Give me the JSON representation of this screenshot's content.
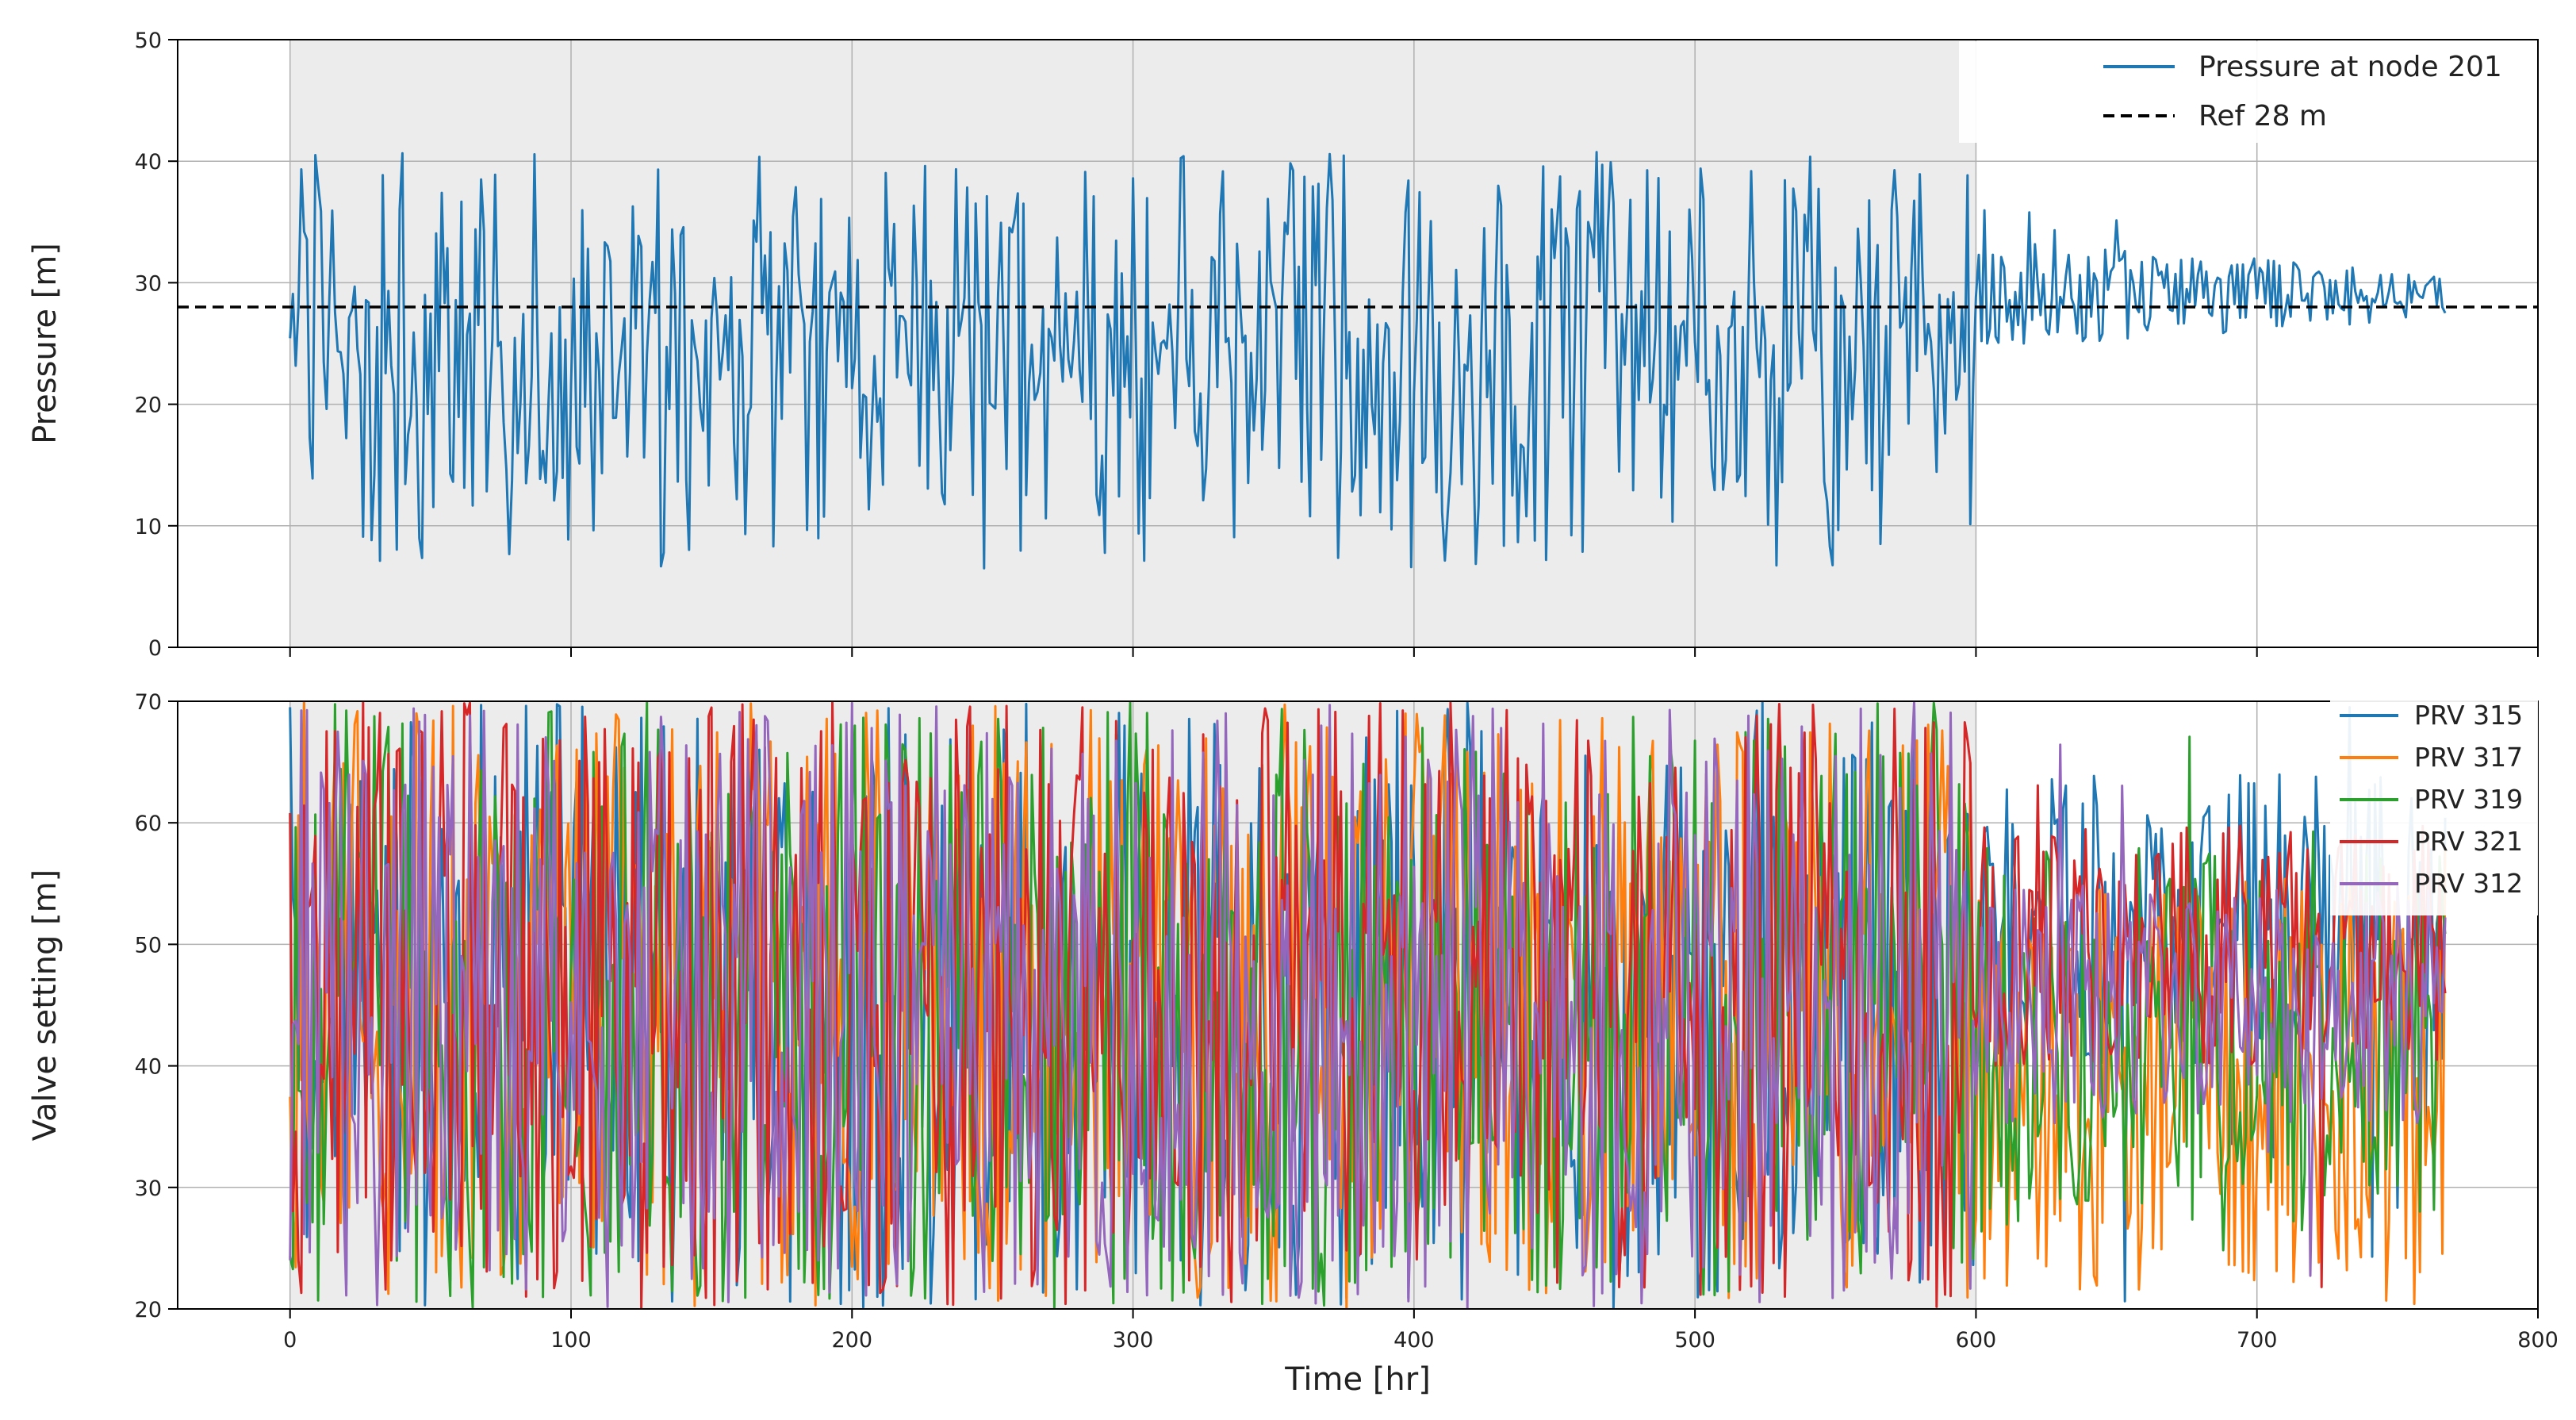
{
  "chart_data": [
    {
      "type": "line",
      "xlabel": "",
      "ylabel": "Pressure [m]",
      "xlim": [
        -40,
        800
      ],
      "ylim": [
        0,
        50
      ],
      "xticks": [
        0,
        100,
        200,
        300,
        400,
        500,
        600,
        700,
        800
      ],
      "yticks": [
        0,
        10,
        20,
        30,
        40,
        50
      ],
      "grid": true,
      "shaded_region": {
        "x_start": 0,
        "x_end": 600,
        "color": "#ececec"
      },
      "legend_position": "top-right",
      "series": [
        {
          "name": "Pressure at node 201",
          "color": "#1f77b4",
          "style": "solid",
          "time_range": [
            0,
            767
          ],
          "sampling_hr": 1,
          "segments": [
            {
              "x_range": [
                0,
                600
              ],
              "mean": 24.5,
              "min": 6.5,
              "max": 40.8
            },
            {
              "x_range": [
                600,
                767
              ],
              "mean": 29.0,
              "min": 25.0,
              "max": 36.2
            }
          ]
        },
        {
          "name": "Ref 28 m",
          "color": "#000000",
          "style": "dashed",
          "constant": 28
        }
      ]
    },
    {
      "type": "line",
      "xlabel": "Time [hr]",
      "ylabel": "Valve setting [m]",
      "xlim": [
        -40,
        800
      ],
      "ylim": [
        20,
        70
      ],
      "xticks": [
        0,
        100,
        200,
        300,
        400,
        500,
        600,
        700,
        800
      ],
      "yticks": [
        20,
        30,
        40,
        50,
        60,
        70
      ],
      "grid": true,
      "shaded_region": {
        "x_start": 0,
        "x_end": 600,
        "color": "#ececec"
      },
      "legend_position": "top-right",
      "series": [
        {
          "name": "PRV 315",
          "color": "#1f77b4",
          "time_range": [
            0,
            767
          ],
          "value_range": [
            20,
            70
          ]
        },
        {
          "name": "PRV 317",
          "color": "#ff7f0e",
          "time_range": [
            0,
            767
          ],
          "value_range": [
            20,
            70
          ]
        },
        {
          "name": "PRV 319",
          "color": "#2ca02c",
          "time_range": [
            0,
            767
          ],
          "value_range": [
            20,
            70
          ]
        },
        {
          "name": "PRV 321",
          "color": "#d62728",
          "time_range": [
            0,
            767
          ],
          "value_range": [
            20,
            70
          ]
        },
        {
          "name": "PRV 312",
          "color": "#9467bd",
          "time_range": [
            0,
            767
          ],
          "value_range": [
            20,
            70
          ]
        }
      ]
    }
  ]
}
